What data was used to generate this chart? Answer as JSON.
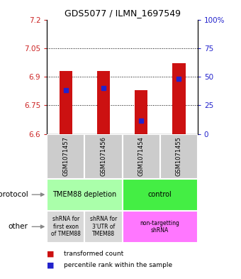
{
  "title": "GDS5077 / ILMN_1697549",
  "samples": [
    "GSM1071457",
    "GSM1071456",
    "GSM1071454",
    "GSM1071455"
  ],
  "bar_values": [
    6.93,
    6.93,
    6.83,
    6.97
  ],
  "bar_bottoms": [
    6.6,
    6.6,
    6.6,
    6.6
  ],
  "percentile_values": [
    6.83,
    6.84,
    6.67,
    6.89
  ],
  "ylim_left": [
    6.6,
    7.2
  ],
  "ylim_right": [
    0,
    100
  ],
  "yticks_left": [
    6.6,
    6.75,
    6.9,
    7.05,
    7.2
  ],
  "yticks_right": [
    0,
    25,
    50,
    75,
    100
  ],
  "ytick_labels_left": [
    "6.6",
    "6.75",
    "6.9",
    "7.05",
    "7.2"
  ],
  "ytick_labels_right": [
    "0",
    "25",
    "50",
    "75",
    "100%"
  ],
  "grid_values": [
    7.05,
    6.9,
    6.75
  ],
  "bar_color": "#cc1111",
  "percentile_color": "#2222cc",
  "bar_width": 0.35,
  "protocol_labels": [
    "TMEM88 depletion",
    "control"
  ],
  "protocol_colors": [
    "#aaffaa",
    "#44ee44"
  ],
  "other_labels": [
    "shRNA for\nfirst exon\nof TMEM88",
    "shRNA for\n3'UTR of\nTMEM88",
    "non-targetting\nshRNA"
  ],
  "other_colors": [
    "#d8d8d8",
    "#d8d8d8",
    "#ff77ff"
  ],
  "legend_red": "transformed count",
  "legend_blue": "percentile rank within the sample",
  "label_protocol": "protocol",
  "label_other": "other",
  "fig_width": 3.4,
  "fig_height": 3.93,
  "dpi": 100
}
